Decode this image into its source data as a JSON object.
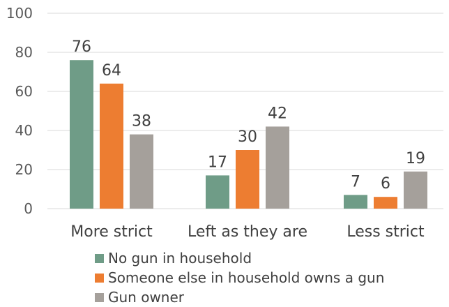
{
  "chart_data": {
    "type": "bar",
    "title": "",
    "xlabel": "",
    "ylabel": "",
    "ylim": [
      0,
      100
    ],
    "yticks": [
      0,
      20,
      40,
      60,
      80,
      100
    ],
    "grid": true,
    "legend_position": "bottom-left",
    "categories": [
      "More strict",
      "Left as they are",
      "Less strict"
    ],
    "series": [
      {
        "name": "No gun in household",
        "color": "#6f9c87",
        "values": [
          76,
          17,
          7
        ]
      },
      {
        "name": "Someone else in household owns a gun",
        "color": "#ed7d31",
        "values": [
          64,
          30,
          6
        ]
      },
      {
        "name": "Gun owner",
        "color": "#a5a09b",
        "values": [
          38,
          42,
          19
        ]
      }
    ]
  }
}
